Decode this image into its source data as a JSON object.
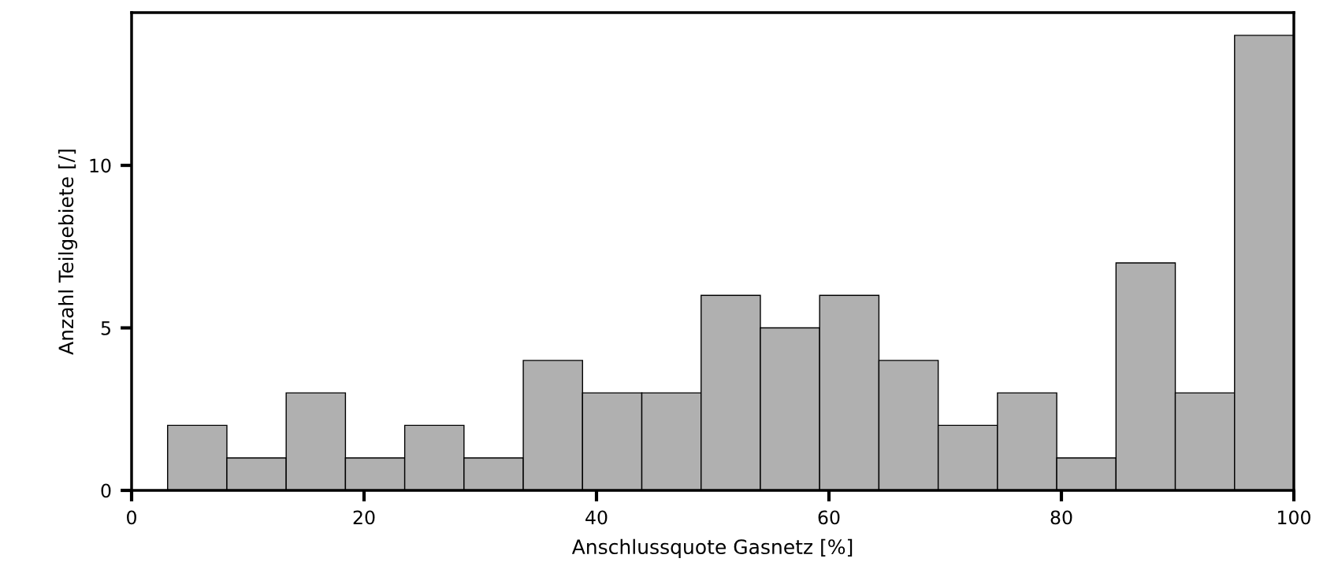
{
  "chart_data": {
    "type": "histogram",
    "xlabel": "Anschlussquote Gasnetz [%]",
    "ylabel": "Anzahl Teilgebiete [/]",
    "bins": [
      3.1,
      8.2,
      13.3,
      18.4,
      23.5,
      28.6,
      33.7,
      38.8,
      43.9,
      49.0,
      54.1,
      59.2,
      64.3,
      69.4,
      74.5,
      79.6,
      84.7,
      89.8,
      94.9,
      100.0
    ],
    "values": [
      2,
      1,
      3,
      1,
      2,
      1,
      4,
      3,
      3,
      6,
      5,
      6,
      4,
      2,
      3,
      1,
      7,
      3,
      14
    ],
    "color": "#b0b0b0",
    "xlim": [
      0,
      100
    ],
    "xticks": [
      0,
      20,
      40,
      60,
      80,
      100
    ],
    "ylim": [
      0,
      14.7
    ],
    "yticks": [
      0,
      5,
      10
    ],
    "grid": false
  }
}
